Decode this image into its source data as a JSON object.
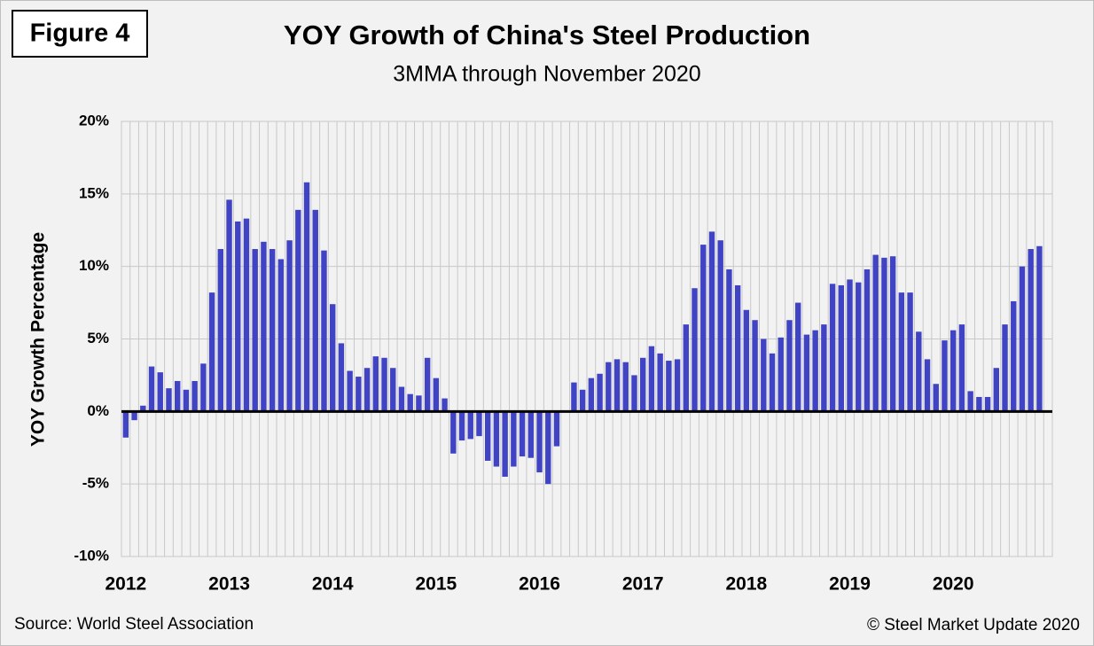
{
  "chart_data": {
    "type": "bar",
    "figure_label": "Figure 4",
    "title": "YOY Growth of China's Steel Production",
    "subtitle": "3MMA through November 2020",
    "y_label": "YOY Growth Percentage",
    "source": "Source: World Steel Association",
    "copyright": "© Steel Market Update 2020",
    "color": "#4043c4",
    "grid": true,
    "ylim": [
      -10,
      20
    ],
    "yticks": [
      {
        "value": -10,
        "label": "-10%"
      },
      {
        "value": -5,
        "label": "-5%"
      },
      {
        "value": 0,
        "label": "0%"
      },
      {
        "value": 5,
        "label": "5%"
      },
      {
        "value": 10,
        "label": "10%"
      },
      {
        "value": 15,
        "label": "15%"
      },
      {
        "value": 20,
        "label": "20%"
      }
    ],
    "categories": [
      "2012",
      null,
      null,
      null,
      null,
      null,
      null,
      null,
      null,
      null,
      null,
      null,
      "2013",
      null,
      null,
      null,
      null,
      null,
      null,
      null,
      null,
      null,
      null,
      null,
      "2014",
      null,
      null,
      null,
      null,
      null,
      null,
      null,
      null,
      null,
      null,
      null,
      "2015",
      null,
      null,
      null,
      null,
      null,
      null,
      null,
      null,
      null,
      null,
      null,
      "2016",
      null,
      null,
      null,
      null,
      null,
      null,
      null,
      null,
      null,
      null,
      null,
      "2017",
      null,
      null,
      null,
      null,
      null,
      null,
      null,
      null,
      null,
      null,
      null,
      "2018",
      null,
      null,
      null,
      null,
      null,
      null,
      null,
      null,
      null,
      null,
      null,
      "2019",
      null,
      null,
      null,
      null,
      null,
      null,
      null,
      null,
      null,
      null,
      null,
      "2020",
      null,
      null,
      null,
      null,
      null,
      null,
      null,
      null,
      null,
      null
    ],
    "values": [
      -1.8,
      -0.6,
      0.4,
      3.1,
      2.7,
      1.6,
      2.1,
      1.5,
      2.1,
      3.3,
      8.2,
      11.2,
      14.6,
      13.1,
      13.3,
      11.2,
      11.7,
      11.2,
      10.5,
      11.8,
      13.9,
      15.8,
      13.9,
      11.1,
      7.4,
      4.7,
      2.8,
      2.4,
      3.0,
      3.8,
      3.7,
      3.0,
      1.7,
      1.2,
      1.1,
      3.7,
      2.3,
      0.9,
      -2.9,
      -2.0,
      -1.9,
      -1.7,
      -3.4,
      -3.8,
      -4.5,
      -3.8,
      -3.1,
      -3.2,
      -4.2,
      -5.0,
      -2.4,
      null,
      2.0,
      1.5,
      2.3,
      2.6,
      3.4,
      3.6,
      3.4,
      2.5,
      3.7,
      4.5,
      4.0,
      3.5,
      3.6,
      6.0,
      8.5,
      11.5,
      12.4,
      11.8,
      9.8,
      8.7,
      7.0,
      6.3,
      5.0,
      4.0,
      5.1,
      6.3,
      7.5,
      5.3,
      5.6,
      6.0,
      8.8,
      8.7,
      9.1,
      8.9,
      9.8,
      10.8,
      10.6,
      10.7,
      8.2,
      8.2,
      5.5,
      3.6,
      1.9,
      4.9,
      5.6,
      6.0,
      1.4,
      1.0,
      1.0,
      3.0,
      6.0,
      7.6,
      10.0,
      11.2,
      11.4
    ]
  }
}
